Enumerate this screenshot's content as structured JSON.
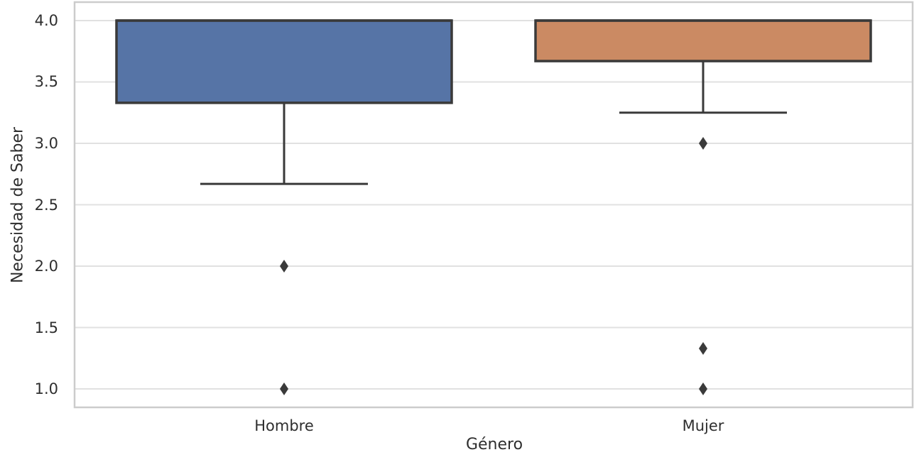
{
  "figure": {
    "background_color": "#ffffff"
  },
  "chart_data": {
    "type": "box",
    "title": "",
    "xlabel": "Género",
    "ylabel": "Necesidad de Saber",
    "categories": [
      "Hombre",
      "Mujer"
    ],
    "yticks": [
      "1.0",
      "1.5",
      "2.0",
      "2.5",
      "3.0",
      "3.5",
      "4.0"
    ],
    "ylim": [
      0.85,
      4.15
    ],
    "xlim": [
      -0.5,
      1.5
    ],
    "grid": true,
    "legend": null,
    "series": [
      {
        "name": "Hombre",
        "x": 0,
        "q1": 3.33,
        "median": 4.0,
        "q3": 4.0,
        "whisker_low": 2.67,
        "whisker_high": 4.0,
        "outliers": [
          2.0,
          1.0
        ],
        "fill_color": "#5674A6"
      },
      {
        "name": "Mujer",
        "x": 1,
        "q1": 3.67,
        "median": 4.0,
        "q3": 4.0,
        "whisker_low": 3.25,
        "whisker_high": 4.0,
        "outliers": [
          3.0,
          1.33,
          1.0
        ],
        "fill_color": "#CB8A63"
      }
    ],
    "style": {
      "line_color": "#3A3A3A",
      "grid_color": "#E1E1E1",
      "spine_color": "#CCCCCC",
      "text_color": "#2E2E2E",
      "box_width": 0.8,
      "cap_width": 0.4
    }
  }
}
